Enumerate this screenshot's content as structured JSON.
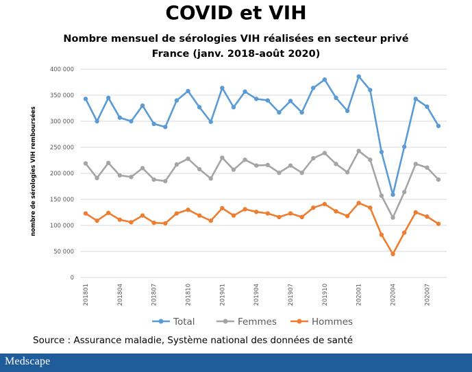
{
  "slide_title": "COVID et VIH",
  "subtitle_lines": [
    "Nombre mensuel de sérologies VIH réalisées en secteur privé",
    "France (janv. 2018-août 2020)"
  ],
  "source": "Source : Assurance maladie, Système national des données de santé",
  "logo": "Medscape",
  "chart_data": {
    "type": "line",
    "title": "",
    "xlabel": "",
    "ylabel": "nombre de sérologies VIH remboursées",
    "ylim": [
      0,
      400000
    ],
    "yticks": [
      0,
      50000,
      100000,
      150000,
      200000,
      250000,
      300000,
      350000,
      400000
    ],
    "ytick_labels": [
      "0",
      "50 000",
      "100 000",
      "150 000",
      "200 000",
      "250 000",
      "300 000",
      "350 000",
      "400 000"
    ],
    "grid": true,
    "legend_position": "bottom",
    "x": [
      "201801",
      "201802",
      "201803",
      "201804",
      "201805",
      "201806",
      "201807",
      "201808",
      "201809",
      "201810",
      "201811",
      "201812",
      "201901",
      "201902",
      "201903",
      "201904",
      "201905",
      "201906",
      "201907",
      "201908",
      "201909",
      "201910",
      "201911",
      "201912",
      "202001",
      "202002",
      "202003",
      "202004",
      "202005",
      "202006",
      "202007",
      "202008"
    ],
    "xtick_labels": [
      "201801",
      "201804",
      "201807",
      "201810",
      "201901",
      "201904",
      "201907",
      "201910",
      "202001",
      "202004",
      "202007"
    ],
    "series": [
      {
        "name": "Total",
        "color": "#5b9bd5",
        "values": [
          343000,
          300000,
          345000,
          307000,
          300000,
          330000,
          295000,
          289000,
          340000,
          358000,
          327000,
          299000,
          364000,
          327000,
          357000,
          343000,
          340000,
          317000,
          339000,
          317000,
          364000,
          380000,
          345000,
          320000,
          386000,
          360000,
          241000,
          159000,
          251000,
          343000,
          328000,
          291000
        ]
      },
      {
        "name": "Femmes",
        "color": "#a5a5a5",
        "values": [
          219000,
          191000,
          220000,
          196000,
          193000,
          210000,
          188000,
          185000,
          217000,
          228000,
          208000,
          190000,
          230000,
          207000,
          226000,
          215000,
          216000,
          201000,
          215000,
          201000,
          229000,
          239000,
          218000,
          202000,
          243000,
          226000,
          157000,
          115000,
          164000,
          218000,
          211000,
          188000
        ]
      },
      {
        "name": "Hommes",
        "color": "#ed7d31",
        "values": [
          123000,
          109000,
          124000,
          111000,
          106000,
          119000,
          105000,
          104000,
          123000,
          130000,
          119000,
          109000,
          133000,
          119000,
          131000,
          126000,
          123000,
          116000,
          123000,
          116000,
          134000,
          141000,
          127000,
          118000,
          143000,
          134000,
          82000,
          45000,
          86000,
          125000,
          117000,
          103000
        ]
      }
    ]
  }
}
